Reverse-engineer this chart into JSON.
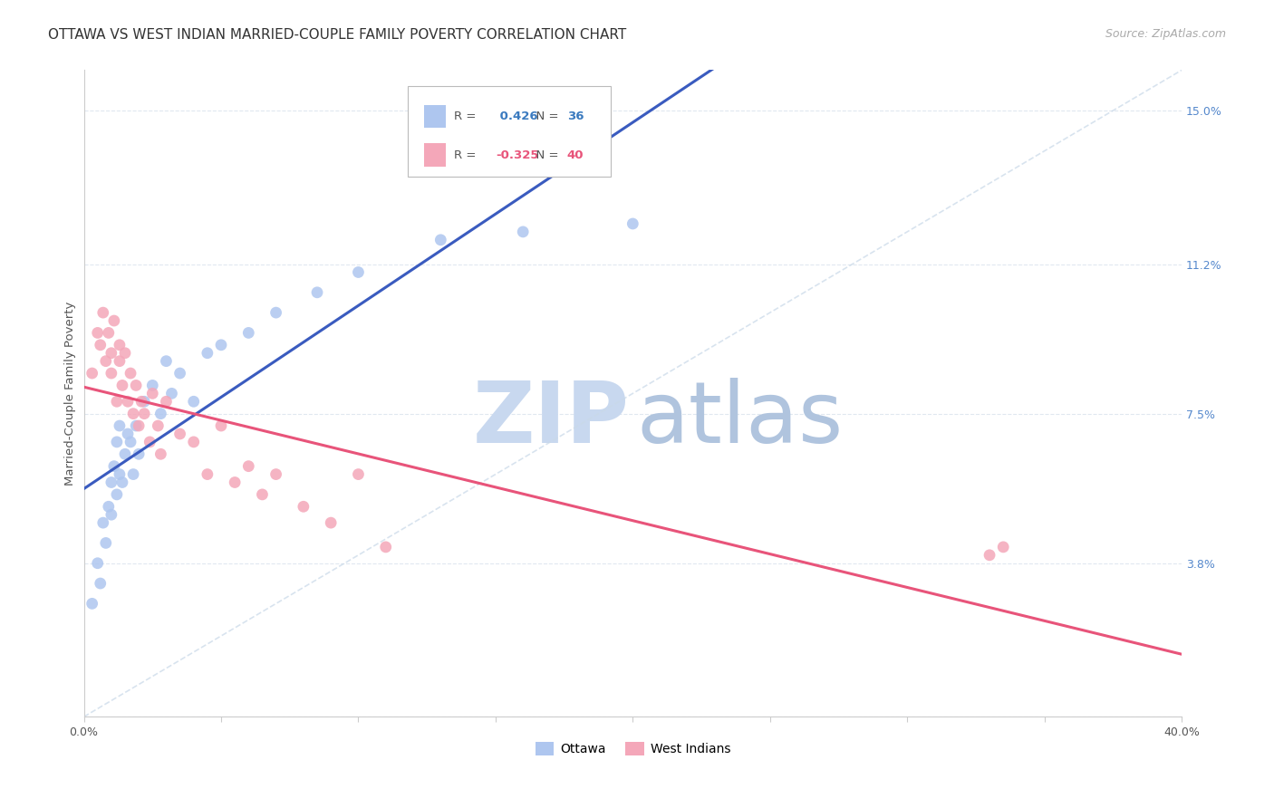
{
  "title": "OTTAWA VS WEST INDIAN MARRIED-COUPLE FAMILY POVERTY CORRELATION CHART",
  "source": "Source: ZipAtlas.com",
  "ylabel": "Married-Couple Family Poverty",
  "ytick_labels": [
    "",
    "3.8%",
    "7.5%",
    "11.2%",
    "15.0%"
  ],
  "ytick_values": [
    0.0,
    0.038,
    0.075,
    0.112,
    0.15
  ],
  "xlim": [
    0.0,
    0.4
  ],
  "ylim": [
    0.0,
    0.16
  ],
  "ottawa_R": 0.426,
  "ottawa_N": 36,
  "westindian_R": -0.325,
  "westindian_N": 40,
  "ottawa_color": "#aec6ef",
  "westindian_color": "#f4a7b9",
  "ottawa_line_color": "#3a5bbf",
  "westindian_line_color": "#e8547a",
  "diagonal_line_color": "#c8d8e8",
  "watermark_zip_color": "#d0ddf0",
  "watermark_atlas_color": "#b8c8e0",
  "background_color": "#ffffff",
  "grid_color": "#e0e8f0",
  "title_color": "#333333",
  "source_color": "#aaaaaa",
  "ottawa_points_x": [
    0.003,
    0.005,
    0.006,
    0.007,
    0.008,
    0.009,
    0.01,
    0.01,
    0.011,
    0.012,
    0.012,
    0.013,
    0.013,
    0.014,
    0.015,
    0.016,
    0.017,
    0.018,
    0.019,
    0.02,
    0.022,
    0.025,
    0.028,
    0.03,
    0.032,
    0.035,
    0.04,
    0.045,
    0.05,
    0.06,
    0.07,
    0.085,
    0.1,
    0.13,
    0.16,
    0.2
  ],
  "ottawa_points_y": [
    0.028,
    0.038,
    0.033,
    0.048,
    0.043,
    0.052,
    0.05,
    0.058,
    0.062,
    0.055,
    0.068,
    0.06,
    0.072,
    0.058,
    0.065,
    0.07,
    0.068,
    0.06,
    0.072,
    0.065,
    0.078,
    0.082,
    0.075,
    0.088,
    0.08,
    0.085,
    0.078,
    0.09,
    0.092,
    0.095,
    0.1,
    0.105,
    0.11,
    0.118,
    0.12,
    0.122
  ],
  "westindian_points_x": [
    0.003,
    0.005,
    0.006,
    0.007,
    0.008,
    0.009,
    0.01,
    0.01,
    0.011,
    0.012,
    0.013,
    0.013,
    0.014,
    0.015,
    0.016,
    0.017,
    0.018,
    0.019,
    0.02,
    0.021,
    0.022,
    0.024,
    0.025,
    0.027,
    0.028,
    0.03,
    0.035,
    0.04,
    0.045,
    0.05,
    0.055,
    0.06,
    0.065,
    0.07,
    0.08,
    0.09,
    0.1,
    0.11,
    0.33,
    0.335
  ],
  "westindian_points_y": [
    0.085,
    0.095,
    0.092,
    0.1,
    0.088,
    0.095,
    0.09,
    0.085,
    0.098,
    0.078,
    0.092,
    0.088,
    0.082,
    0.09,
    0.078,
    0.085,
    0.075,
    0.082,
    0.072,
    0.078,
    0.075,
    0.068,
    0.08,
    0.072,
    0.065,
    0.078,
    0.07,
    0.068,
    0.06,
    0.072,
    0.058,
    0.062,
    0.055,
    0.06,
    0.052,
    0.048,
    0.06,
    0.042,
    0.04,
    0.042
  ],
  "title_fontsize": 11,
  "source_fontsize": 9,
  "axis_label_fontsize": 9.5,
  "tick_fontsize": 9,
  "legend_fontsize": 10
}
